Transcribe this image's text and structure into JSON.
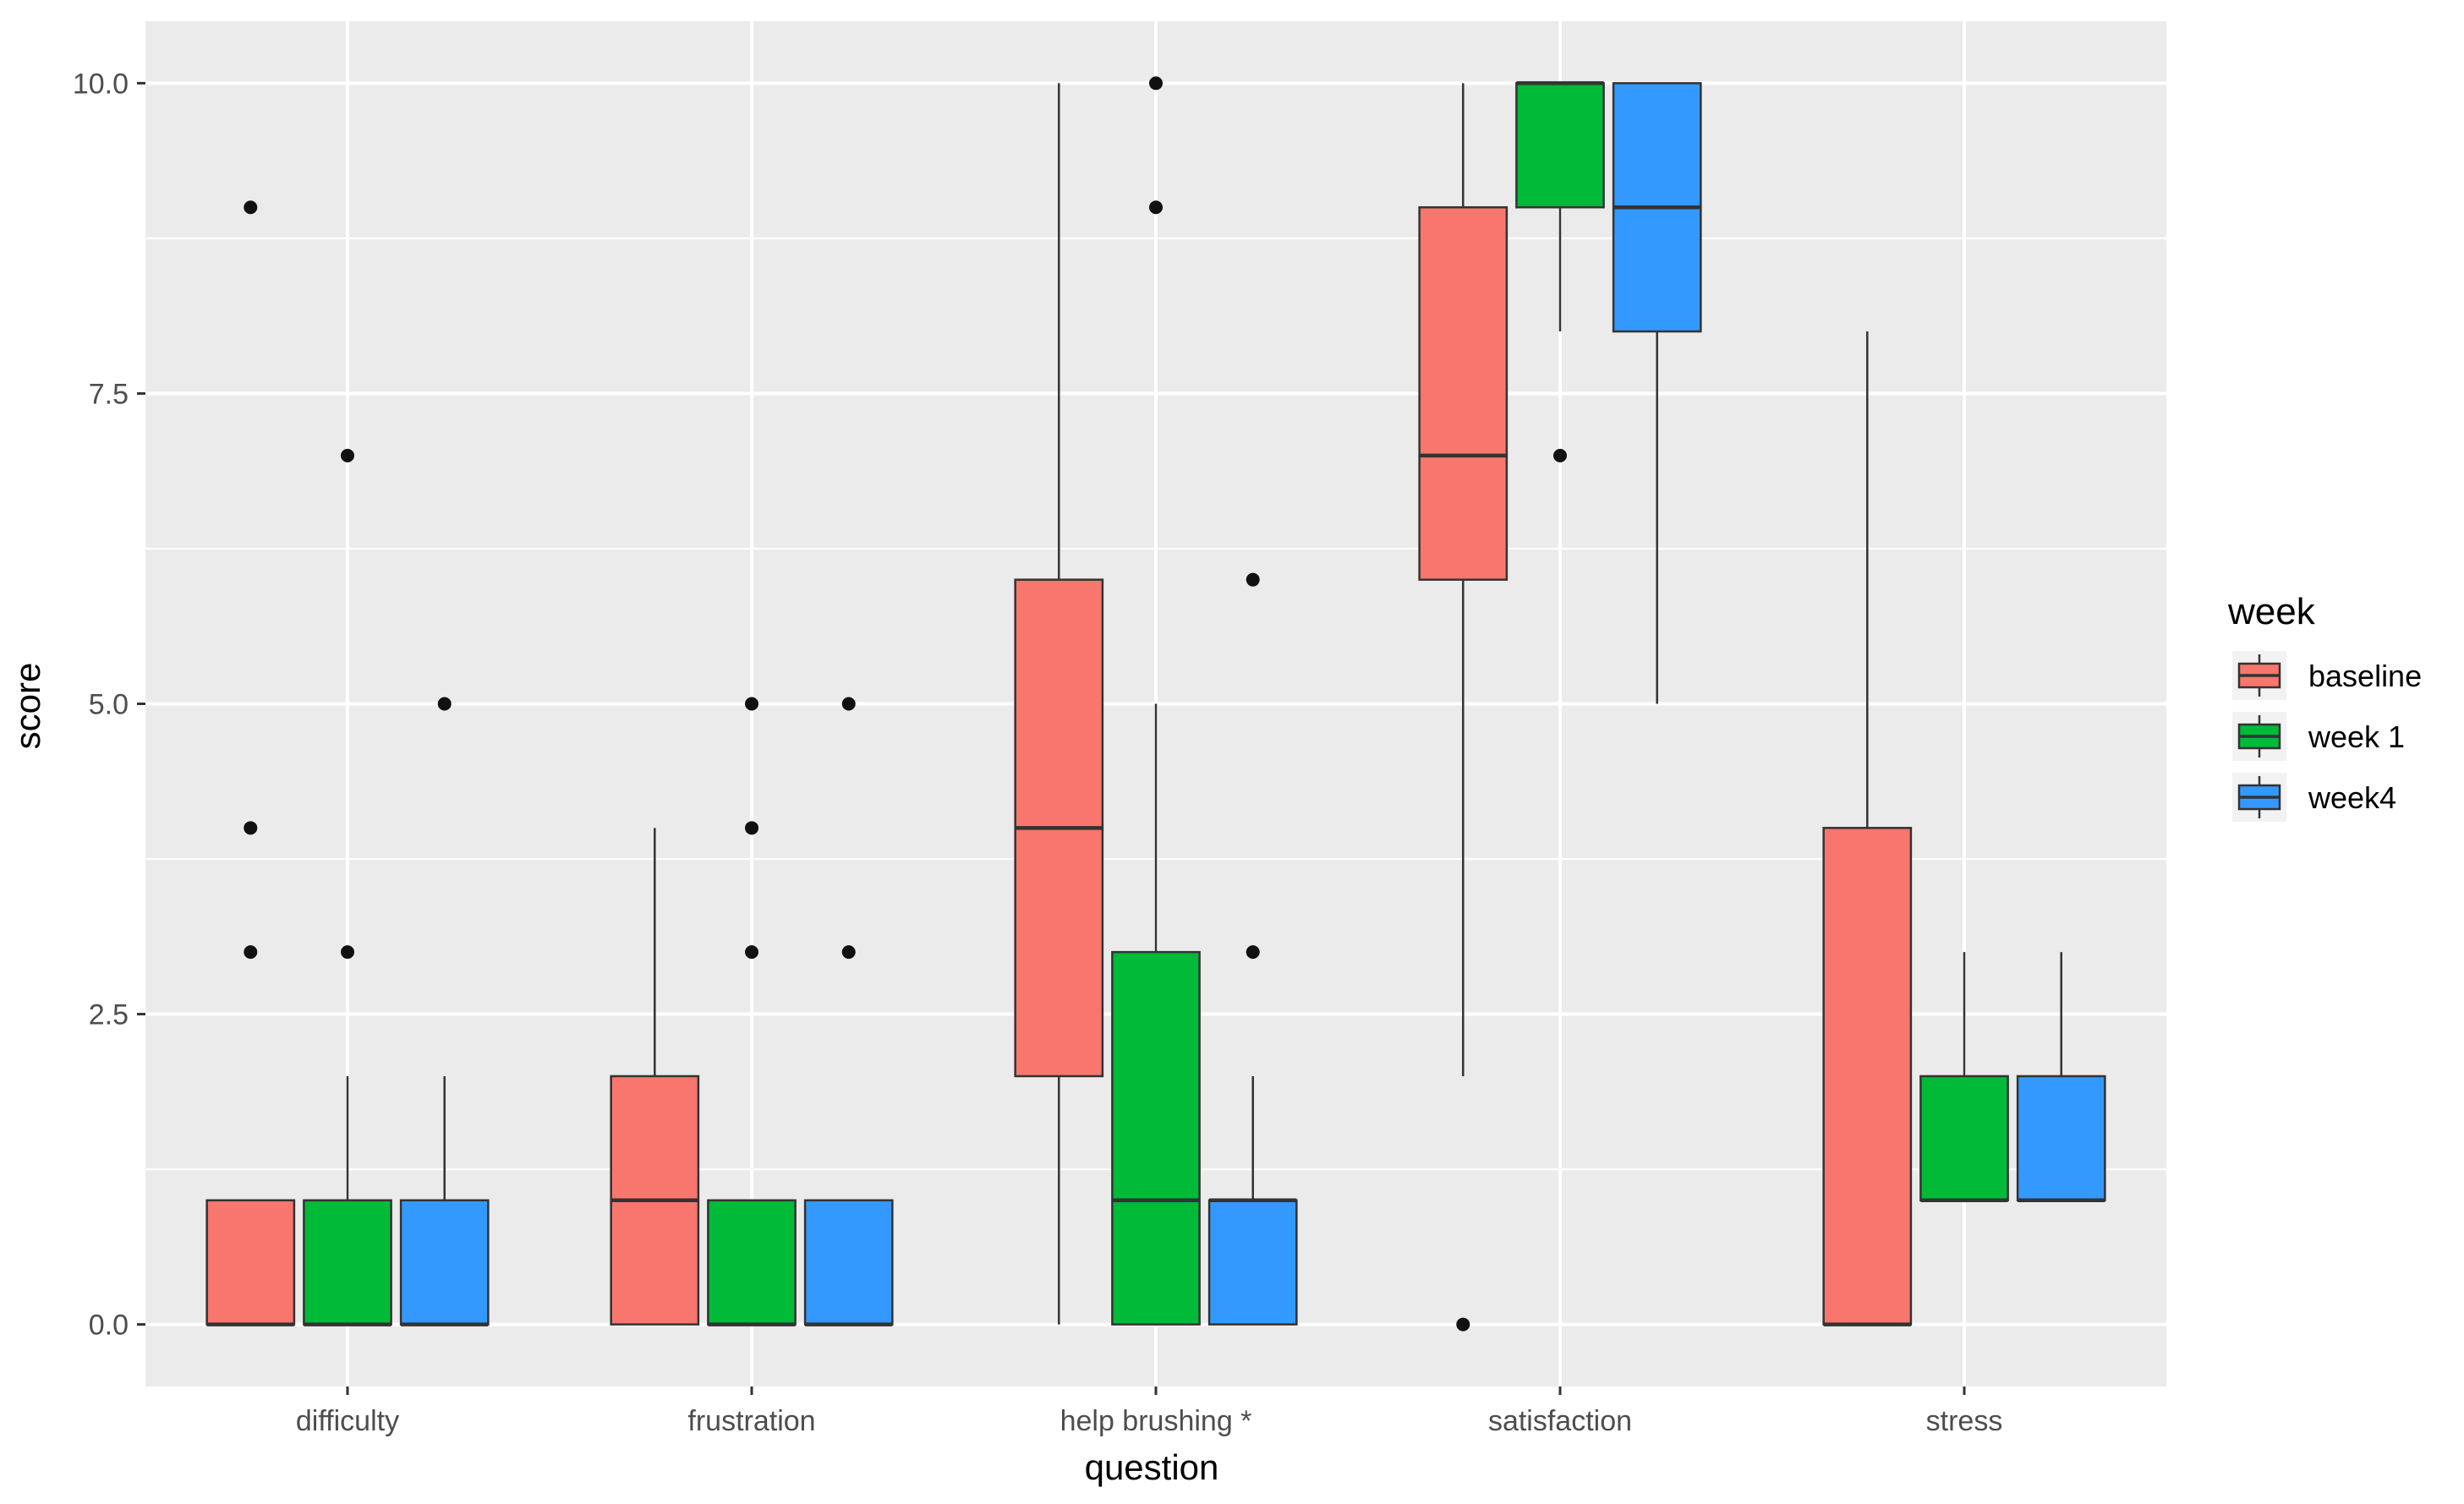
{
  "chart_data": {
    "type": "boxplot",
    "title": "",
    "xlabel": "question",
    "ylabel": "score",
    "ylim": [
      -0.5,
      10.5
    ],
    "yticks": [
      "0.0",
      "2.5",
      "5.0",
      "7.5",
      "10.0"
    ],
    "ytick_values": [
      0,
      2.5,
      5,
      7.5,
      10
    ],
    "categories": [
      "difficulty",
      "frustration",
      "help brushing *",
      "satisfaction",
      "stress"
    ],
    "legend": {
      "title": "week",
      "position": "right",
      "entries": [
        "baseline",
        "week 1",
        "week4"
      ]
    },
    "colors": {
      "baseline": "#F8766D",
      "week 1": "#00BA38",
      "week4": "#3399FF",
      "panel": "#EBEBEB",
      "grid": "#FFFFFF",
      "outline": "#333333"
    },
    "series": [
      {
        "name": "baseline",
        "boxes": [
          {
            "q1": 0,
            "median": 0,
            "q3": 1,
            "whisker_low": 0,
            "whisker_high": 1,
            "outliers": [
              3,
              4,
              9
            ]
          },
          {
            "q1": 0,
            "median": 1,
            "q3": 2,
            "whisker_low": 0,
            "whisker_high": 4,
            "outliers": []
          },
          {
            "q1": 2,
            "median": 4,
            "q3": 6,
            "whisker_low": 0,
            "whisker_high": 10,
            "outliers": []
          },
          {
            "q1": 6,
            "median": 7,
            "q3": 9,
            "whisker_low": 2,
            "whisker_high": 10,
            "outliers": [
              0
            ]
          },
          {
            "q1": 0,
            "median": 0,
            "q3": 4,
            "whisker_low": 0,
            "whisker_high": 8,
            "outliers": []
          }
        ]
      },
      {
        "name": "week 1",
        "boxes": [
          {
            "q1": 0,
            "median": 0,
            "q3": 1,
            "whisker_low": 0,
            "whisker_high": 2,
            "outliers": [
              3,
              7
            ]
          },
          {
            "q1": 0,
            "median": 0,
            "q3": 1,
            "whisker_low": 0,
            "whisker_high": 1,
            "outliers": [
              3,
              4,
              5
            ]
          },
          {
            "q1": 0,
            "median": 1,
            "q3": 3,
            "whisker_low": 0,
            "whisker_high": 5,
            "outliers": [
              9,
              10
            ]
          },
          {
            "q1": 9,
            "median": 10,
            "q3": 10,
            "whisker_low": 8,
            "whisker_high": 10,
            "outliers": [
              7
            ]
          },
          {
            "q1": 1,
            "median": 1,
            "q3": 2,
            "whisker_low": 1,
            "whisker_high": 3,
            "outliers": []
          }
        ]
      },
      {
        "name": "week4",
        "boxes": [
          {
            "q1": 0,
            "median": 0,
            "q3": 1,
            "whisker_low": 0,
            "whisker_high": 2,
            "outliers": [
              5
            ]
          },
          {
            "q1": 0,
            "median": 0,
            "q3": 1,
            "whisker_low": 0,
            "whisker_high": 1,
            "outliers": [
              3,
              5
            ]
          },
          {
            "q1": 0,
            "median": 1,
            "q3": 1,
            "whisker_low": 0,
            "whisker_high": 2,
            "outliers": [
              3,
              6
            ]
          },
          {
            "q1": 8,
            "median": 9,
            "q3": 10,
            "whisker_low": 5,
            "whisker_high": 10,
            "outliers": []
          },
          {
            "q1": 1,
            "median": 1,
            "q3": 2,
            "whisker_low": 1,
            "whisker_high": 3,
            "outliers": []
          }
        ]
      }
    ]
  }
}
